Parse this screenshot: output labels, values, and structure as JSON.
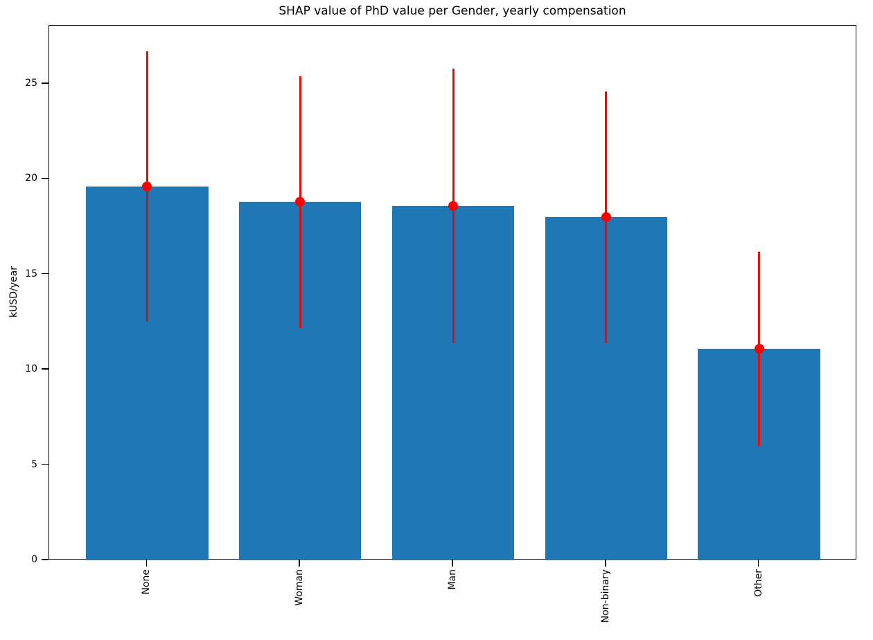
{
  "chart_data": {
    "type": "bar",
    "title": "SHAP value of PhD value per Gender, yearly compensation",
    "xlabel": "",
    "ylabel": "kUSD/year",
    "categories": [
      "None",
      "Woman",
      "Man",
      "Non-binary",
      "Other"
    ],
    "values": [
      19.6,
      18.8,
      18.6,
      18.0,
      11.1
    ],
    "error_low": [
      12.5,
      12.2,
      11.4,
      11.4,
      6.0
    ],
    "error_high": [
      26.7,
      25.4,
      25.8,
      24.6,
      16.2
    ],
    "marker_values": [
      19.6,
      18.8,
      18.6,
      18.0,
      11.1
    ],
    "yticks": [
      0,
      5,
      10,
      15,
      20,
      25
    ],
    "ylim": [
      0,
      28.05
    ],
    "xlim": [
      -0.64,
      4.64
    ],
    "bar_half_width": 0.4,
    "xtick_rotation": 90,
    "grid": false,
    "colors": {
      "bar": "#1f77b4",
      "error": "#ff0000",
      "marker": "#ff0000",
      "spine": "#000000",
      "text": "#000000",
      "background": "#ffffff"
    }
  }
}
